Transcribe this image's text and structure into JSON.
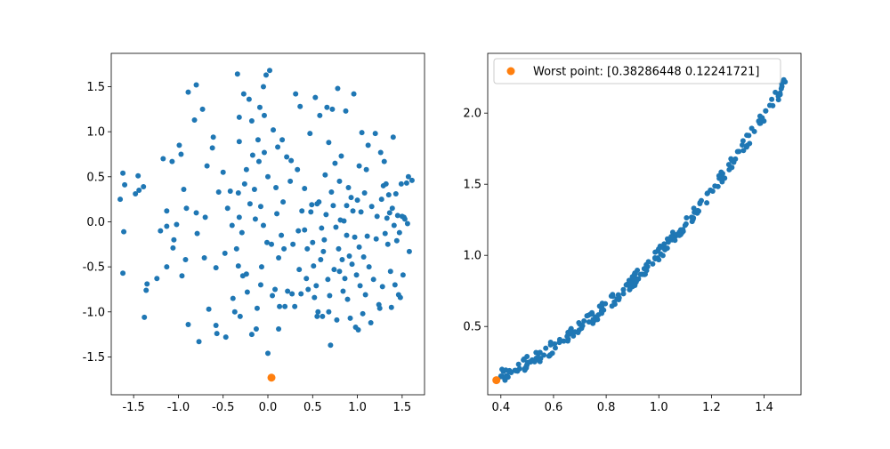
{
  "colors": {
    "points": "#1f77b4",
    "highlight": "#ff7f0e"
  },
  "chart_data": [
    {
      "type": "scatter",
      "xlim": [
        -1.75,
        1.75
      ],
      "ylim": [
        -1.92,
        1.87
      ],
      "xticks": [
        "-1.5",
        "-1.0",
        "-0.5",
        "0.0",
        "0.5",
        "1.0",
        "1.5"
      ],
      "yticks": [
        "-1.5",
        "-1.0",
        "-0.5",
        "0.0",
        "0.5",
        "1.0",
        "1.5"
      ],
      "grid": false,
      "series": [
        {
          "name": "",
          "points": [
            [
              -1.62,
              0.54
            ],
            [
              -1.6,
              0.41
            ],
            [
              -1.61,
              -0.11
            ],
            [
              -1.65,
              0.25
            ],
            [
              -1.62,
              -0.57
            ],
            [
              -1.48,
              0.31
            ],
            [
              -1.44,
              0.35
            ],
            [
              -1.45,
              0.51
            ],
            [
              -1.39,
              0.39
            ],
            [
              -1.36,
              -0.76
            ],
            [
              -1.35,
              -0.69
            ],
            [
              -1.38,
              -1.06
            ],
            [
              -1.24,
              -0.63
            ],
            [
              -1.17,
              0.7
            ],
            [
              -1.13,
              0.12
            ],
            [
              -1.13,
              -0.5
            ],
            [
              -1.07,
              0.67
            ],
            [
              -1.13,
              -0.05
            ],
            [
              -1.06,
              -0.29
            ],
            [
              -1.02,
              -0.03
            ],
            [
              -0.99,
              0.85
            ],
            [
              -0.97,
              0.75
            ],
            [
              -0.94,
              0.36
            ],
            [
              -0.89,
              1.44
            ],
            [
              -0.91,
              0.15
            ],
            [
              -0.92,
              -0.42
            ],
            [
              -0.89,
              -1.14
            ],
            [
              -0.82,
              1.13
            ],
            [
              -0.8,
              1.52
            ],
            [
              -0.8,
              0.1
            ],
            [
              -0.79,
              -0.13
            ],
            [
              -0.77,
              -1.33
            ],
            [
              -0.73,
              1.25
            ],
            [
              -0.71,
              -0.4
            ],
            [
              -0.68,
              0.62
            ],
            [
              -0.66,
              -0.97
            ],
            [
              -0.61,
              0.94
            ],
            [
              -0.55,
              0.33
            ],
            [
              -0.58,
              -0.51
            ],
            [
              -0.57,
              -1.24
            ],
            [
              -0.5,
              0.55
            ],
            [
              -0.47,
              -1.28
            ],
            [
              -0.42,
              0.34
            ],
            [
              -0.4,
              -0.04
            ],
            [
              -0.39,
              -0.85
            ],
            [
              -0.37,
              -1.0
            ],
            [
              -0.34,
              1.64
            ],
            [
              -0.32,
              1.16
            ],
            [
              -0.32,
              0.89
            ],
            [
              -0.33,
              0.32
            ],
            [
              -0.32,
              0.05
            ],
            [
              -0.33,
              -0.49
            ],
            [
              -0.31,
              -1.05
            ],
            [
              -0.29,
              -0.12
            ],
            [
              -0.27,
              1.42
            ],
            [
              -0.24,
              0.58
            ],
            [
              -0.26,
              0.42
            ],
            [
              -0.24,
              -0.58
            ],
            [
              -0.23,
              -0.78
            ],
            [
              -0.18,
              1.12
            ],
            [
              -0.17,
              0.74
            ],
            [
              -0.15,
              0.36
            ],
            [
              -0.14,
              0.03
            ],
            [
              -0.12,
              -0.96
            ],
            [
              -0.13,
              -1.19
            ],
            [
              -0.21,
              1.36
            ],
            [
              -0.11,
              0.91
            ],
            [
              -0.1,
              0.67
            ],
            [
              -0.09,
              1.27
            ],
            [
              -0.08,
              0.17
            ],
            [
              -0.07,
              -0.5
            ],
            [
              -0.08,
              -0.7
            ],
            [
              -0.05,
              1.5
            ],
            [
              -0.04,
              1.18
            ],
            [
              -0.04,
              0.77
            ],
            [
              -0.02,
              1.63
            ],
            [
              -0.01,
              -0.23
            ],
            [
              0.0,
              -1.46
            ],
            [
              0.02,
              1.68
            ],
            [
              0.04,
              -0.25
            ],
            [
              0.05,
              -0.82
            ],
            [
              0.06,
              1.02
            ],
            [
              0.08,
              -0.75
            ],
            [
              0.09,
              0.38
            ],
            [
              0.1,
              0.09
            ],
            [
              0.11,
              0.83
            ],
            [
              0.12,
              -0.4
            ],
            [
              0.12,
              -1.19
            ],
            [
              0.13,
              -0.94
            ],
            [
              0.16,
              0.91
            ],
            [
              0.17,
              0.22
            ],
            [
              0.18,
              -0.3
            ],
            [
              0.19,
              -0.94
            ],
            [
              0.21,
              0.72
            ],
            [
              0.22,
              -0.77
            ],
            [
              0.26,
              0.68
            ],
            [
              0.27,
              -0.8
            ],
            [
              0.3,
              -0.94
            ],
            [
              0.31,
              1.42
            ],
            [
              0.33,
              0.58
            ],
            [
              0.34,
              -0.1
            ],
            [
              0.35,
              -0.53
            ],
            [
              0.36,
              1.28
            ],
            [
              0.37,
              -0.8
            ],
            [
              0.38,
              0.12
            ],
            [
              0.41,
              0.37
            ],
            [
              0.41,
              -0.09
            ],
            [
              0.43,
              -0.63
            ],
            [
              0.44,
              -0.3
            ],
            [
              0.47,
              0.98
            ],
            [
              0.48,
              0.11
            ],
            [
              0.49,
              0.19
            ],
            [
              0.5,
              -0.23
            ],
            [
              0.51,
              -0.49
            ],
            [
              0.52,
              -0.84
            ],
            [
              0.53,
              1.38
            ],
            [
              0.54,
              -0.71
            ],
            [
              0.55,
              0.2
            ],
            [
              0.56,
              -1.0
            ],
            [
              0.57,
              0.22
            ],
            [
              0.58,
              1.18
            ],
            [
              0.59,
              -0.42
            ],
            [
              0.6,
              -0.07
            ],
            [
              0.61,
              -1.05
            ],
            [
              0.63,
              -0.2
            ],
            [
              0.64,
              0.52
            ],
            [
              0.65,
              0.08
            ],
            [
              0.66,
              1.27
            ],
            [
              0.67,
              -0.64
            ],
            [
              0.68,
              -1.0
            ],
            [
              0.69,
              -0.82
            ],
            [
              0.7,
              -1.37
            ],
            [
              0.71,
              0.33
            ],
            [
              0.72,
              1.25
            ],
            [
              0.73,
              0.18
            ],
            [
              0.74,
              -0.53
            ],
            [
              0.75,
              0.65
            ],
            [
              0.76,
              -0.06
            ],
            [
              0.77,
              -1.09
            ],
            [
              0.78,
              1.48
            ],
            [
              0.79,
              -0.3
            ],
            [
              0.8,
              0.45
            ],
            [
              0.81,
              0.02
            ],
            [
              0.82,
              0.73
            ],
            [
              0.83,
              -0.42
            ],
            [
              0.84,
              -0.77
            ],
            [
              0.85,
              0.01
            ],
            [
              0.86,
              -0.63
            ],
            [
              0.87,
              1.23
            ],
            [
              0.88,
              0.18
            ],
            [
              0.89,
              -0.86
            ],
            [
              0.9,
              0.38
            ],
            [
              0.91,
              -0.38
            ],
            [
              0.92,
              -1.07
            ],
            [
              0.93,
              0.27
            ],
            [
              0.94,
              -0.47
            ],
            [
              0.95,
              0.12
            ],
            [
              0.96,
              1.42
            ],
            [
              0.97,
              -0.17
            ],
            [
              0.98,
              -1.17
            ],
            [
              0.99,
              -0.59
            ],
            [
              1.0,
              0.24
            ],
            [
              1.01,
              -1.2
            ],
            [
              1.02,
              0.62
            ],
            [
              1.03,
              -0.71
            ],
            [
              1.04,
              0.11
            ],
            [
              1.05,
              0.99
            ],
            [
              1.06,
              -1.02
            ],
            [
              1.07,
              -0.39
            ],
            [
              1.08,
              0.32
            ],
            [
              1.09,
              -0.81
            ],
            [
              1.1,
              0.58
            ],
            [
              1.11,
              -0.16
            ],
            [
              1.12,
              0.85
            ],
            [
              1.13,
              -0.5
            ],
            [
              1.15,
              -1.12
            ],
            [
              1.16,
              0.17
            ],
            [
              1.18,
              -0.64
            ],
            [
              1.2,
              0.98
            ],
            [
              1.21,
              -0.19
            ],
            [
              1.22,
              0.06
            ],
            [
              1.24,
              -0.92
            ],
            [
              1.25,
              -0.96
            ],
            [
              1.26,
              0.77
            ],
            [
              1.27,
              0.25
            ],
            [
              1.28,
              -0.72
            ],
            [
              1.29,
              0.4
            ],
            [
              1.3,
              0.67
            ],
            [
              1.31,
              -0.13
            ],
            [
              1.32,
              0.42
            ],
            [
              1.33,
              0.04
            ],
            [
              1.34,
              -0.25
            ],
            [
              1.35,
              0.3
            ],
            [
              1.36,
              0.1
            ],
            [
              1.37,
              -0.55
            ],
            [
              1.38,
              -0.95
            ],
            [
              1.39,
              0.15
            ],
            [
              1.4,
              0.94
            ],
            [
              1.41,
              -0.04
            ],
            [
              1.42,
              -0.7
            ],
            [
              1.43,
              0.31
            ],
            [
              1.44,
              -0.21
            ],
            [
              1.45,
              0.07
            ],
            [
              1.46,
              -0.81
            ],
            [
              1.47,
              -0.12
            ],
            [
              1.48,
              -0.84
            ],
            [
              1.49,
              0.42
            ],
            [
              1.5,
              0.06
            ],
            [
              1.51,
              -0.59
            ],
            [
              1.52,
              0.05
            ],
            [
              1.53,
              0.03
            ],
            [
              1.55,
              0.43
            ],
            [
              1.56,
              -0.02
            ],
            [
              1.57,
              0.5
            ],
            [
              1.58,
              -0.33
            ],
            [
              1.61,
              0.46
            ],
            [
              -0.96,
              -0.6
            ],
            [
              -0.58,
              -1.15
            ],
            [
              -0.45,
              0.15
            ],
            [
              -0.28,
              -0.6
            ],
            [
              0.15,
              -0.15
            ],
            [
              0.25,
              0.45
            ],
            [
              -1.2,
              -0.1
            ],
            [
              -0.7,
              0.05
            ],
            [
              -0.48,
              -0.35
            ],
            [
              -0.2,
              0.2
            ],
            [
              0.0,
              0.5
            ],
            [
              0.28,
              -0.25
            ],
            [
              0.45,
              -0.75
            ],
            [
              -1.05,
              -0.2
            ],
            [
              -0.62,
              0.82
            ],
            [
              -0.35,
              -0.3
            ],
            [
              0.62,
              -0.33
            ],
            [
              0.68,
              0.88
            ],
            [
              0.88,
              -0.15
            ],
            [
              1.02,
              -0.28
            ],
            [
              -0.05,
              -0.04
            ],
            [
              -0.18,
              -1.25
            ],
            [
              0.55,
              -1.05
            ],
            [
              0.8,
              -0.55
            ]
          ]
        },
        {
          "name": "",
          "points": [
            [
              0.04,
              -1.73
            ]
          ]
        }
      ]
    },
    {
      "type": "scatter",
      "xlim": [
        0.35,
        1.54
      ],
      "ylim": [
        0.02,
        2.42
      ],
      "xticks": [
        "0.4",
        "0.6",
        "0.8",
        "1.0",
        "1.2",
        "1.4"
      ],
      "yticks": [
        "0.5",
        "1.0",
        "1.5",
        "2.0"
      ],
      "grid": false,
      "legend": {
        "position": "top-left",
        "entries": [
          "Worst point: [0.38286448 0.12241721]"
        ]
      },
      "curve_fit": {
        "x_start": 0.4,
        "x_end": 1.51,
        "count": 260,
        "jitter": 0.045,
        "form": "y = x^2 + x*0.03 - 0.02"
      },
      "series": [
        {
          "name": "",
          "points_note": ""
        },
        {
          "name": "Worst point: [0.38286448 0.12241721]",
          "points": [
            [
              0.38286448,
              0.12241721
            ]
          ]
        }
      ]
    }
  ]
}
